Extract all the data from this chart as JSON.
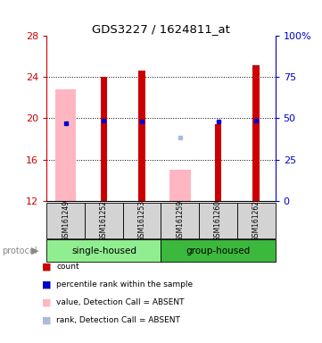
{
  "title": "GDS3227 / 1624811_at",
  "samples": [
    "GSM161249",
    "GSM161252",
    "GSM161253",
    "GSM161259",
    "GSM161260",
    "GSM161262"
  ],
  "red_bar_values": [
    null,
    24.0,
    24.6,
    null,
    19.4,
    25.2
  ],
  "pink_bar_values": [
    22.8,
    null,
    null,
    15.0,
    null,
    null
  ],
  "blue_square_values": [
    19.5,
    19.8,
    19.7,
    null,
    19.7,
    19.8
  ],
  "light_blue_square_values": [
    null,
    null,
    null,
    18.1,
    null,
    null
  ],
  "ylim_left": [
    12,
    28
  ],
  "ylim_right": [
    0,
    100
  ],
  "yticks_left": [
    12,
    16,
    20,
    24,
    28
  ],
  "yticks_right": [
    0,
    25,
    50,
    75,
    100
  ],
  "ytick_labels_right": [
    "0",
    "25",
    "50",
    "75",
    "100%"
  ],
  "group_colors": {
    "single-housed": "#90EE90",
    "group-housed": "#3CB83C"
  },
  "red_color": "#CC0000",
  "pink_color": "#FFB6C1",
  "blue_color": "#0000CC",
  "light_blue_color": "#AABBDD",
  "sample_box_color": "#D3D3D3",
  "legend_items": [
    {
      "color": "#CC0000",
      "label": "count"
    },
    {
      "color": "#0000CC",
      "label": "percentile rank within the sample"
    },
    {
      "color": "#FFB6C1",
      "label": "value, Detection Call = ABSENT"
    },
    {
      "color": "#AABBDD",
      "label": "rank, Detection Call = ABSENT"
    }
  ],
  "groups": [
    {
      "label": "single-housed",
      "start": 0,
      "end": 2,
      "color": "#90EE90"
    },
    {
      "label": "group-housed",
      "start": 3,
      "end": 5,
      "color": "#3CB83C"
    }
  ]
}
